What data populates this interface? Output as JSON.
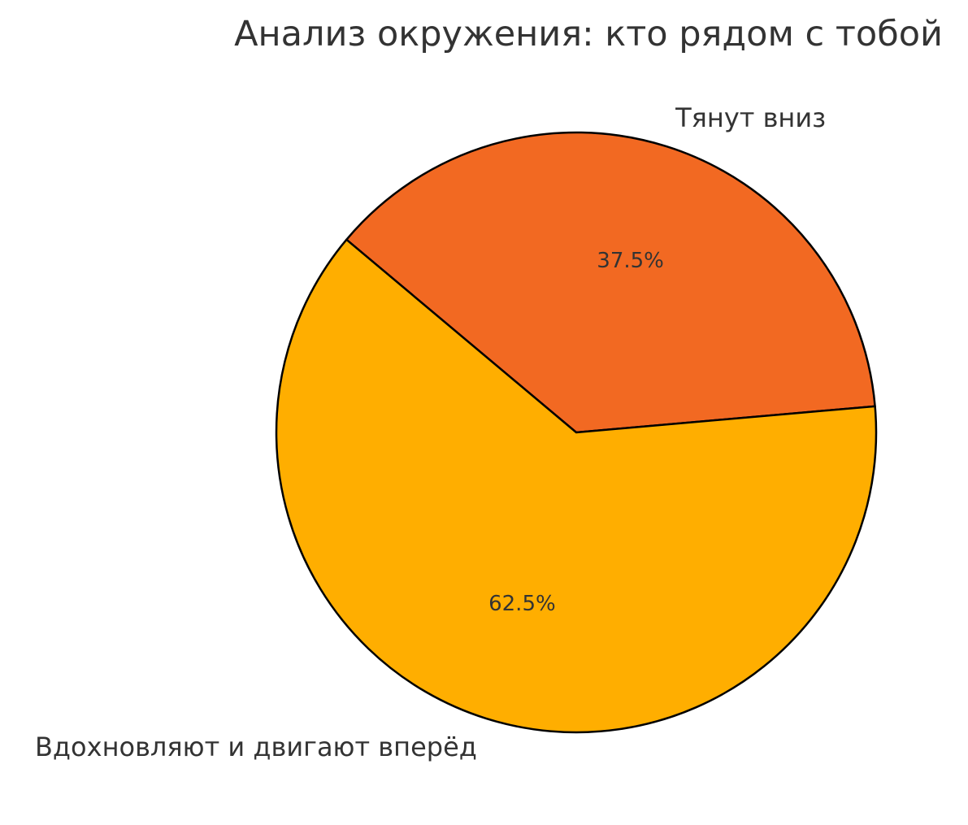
{
  "chart_data": {
    "type": "pie",
    "title": "Анализ окружения: кто рядом с тобой",
    "slices": [
      {
        "label": "Тянут вниз",
        "value": 37.5,
        "pct_label": "37.5%",
        "color": "#F26922"
      },
      {
        "label": "Вдохновляют и двигают вперёд",
        "value": 62.5,
        "pct_label": "62.5%",
        "color": "#FFAE00"
      }
    ],
    "edge_color": "#000000",
    "text_color": "#333333"
  }
}
